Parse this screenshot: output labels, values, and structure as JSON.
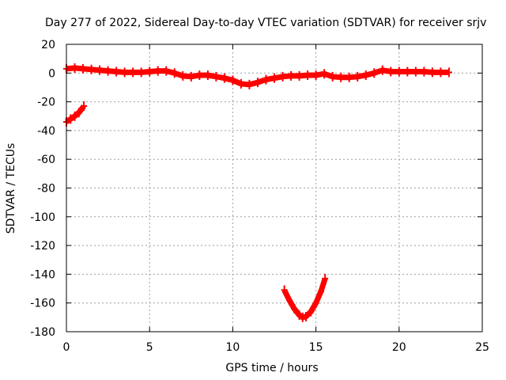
{
  "chart_data": {
    "type": "line",
    "title": "Day 277 of 2022, Sidereal Day-to-day VTEC variation (SDTVAR) for receiver srjv",
    "xlabel": "GPS time / hours",
    "ylabel": "SDTVAR / TECUs",
    "xlim": [
      0,
      25
    ],
    "ylim": [
      -180,
      20
    ],
    "xticks": [
      0,
      5,
      10,
      15,
      20,
      25
    ],
    "yticks": [
      20,
      0,
      -20,
      -40,
      -60,
      -80,
      -100,
      -120,
      -140,
      -160,
      -180
    ],
    "grid": true,
    "legend": "none",
    "series_color": "#ff0000",
    "series": [
      {
        "x": [
          0,
          0.5,
          1,
          1.5,
          2,
          2.5,
          3,
          3.5,
          4,
          4.5,
          5,
          5.5,
          6,
          6.5,
          7,
          7.5,
          8,
          8.5,
          9,
          9.5,
          10,
          10.5,
          11,
          11.5,
          12,
          12.5,
          13,
          13.5,
          14,
          14.5,
          15,
          15.5,
          16,
          16.5,
          17,
          17.5,
          18,
          18.5,
          19,
          19.5,
          20,
          20.5,
          21,
          21.5,
          22,
          22.5,
          23
        ],
        "y": [
          3,
          3.5,
          3,
          2.5,
          2,
          1.5,
          1,
          0.5,
          0.5,
          0.5,
          1,
          1.5,
          1.5,
          0,
          -2,
          -2.5,
          -1.5,
          -1.5,
          -2.5,
          -3.5,
          -5,
          -7.5,
          -8,
          -6.5,
          -4.5,
          -3.5,
          -2.5,
          -2,
          -2,
          -1.5,
          -1.5,
          -0.5,
          -2.5,
          -3,
          -3,
          -2.5,
          -1.5,
          0,
          2,
          1,
          1,
          1,
          1,
          1,
          0.5,
          0.5,
          0.5
        ]
      },
      {
        "x": [
          0,
          0.25,
          0.5,
          0.75,
          1.05
        ],
        "y": [
          -34,
          -32,
          -30,
          -27.5,
          -23
        ]
      },
      {
        "x": [
          13.1,
          13.4,
          13.7,
          14,
          14.2,
          14.4,
          14.7,
          15,
          15.3,
          15.55
        ],
        "y": [
          -151,
          -158,
          -164,
          -168.5,
          -170,
          -169.5,
          -166,
          -160,
          -152,
          -143
        ]
      }
    ]
  }
}
